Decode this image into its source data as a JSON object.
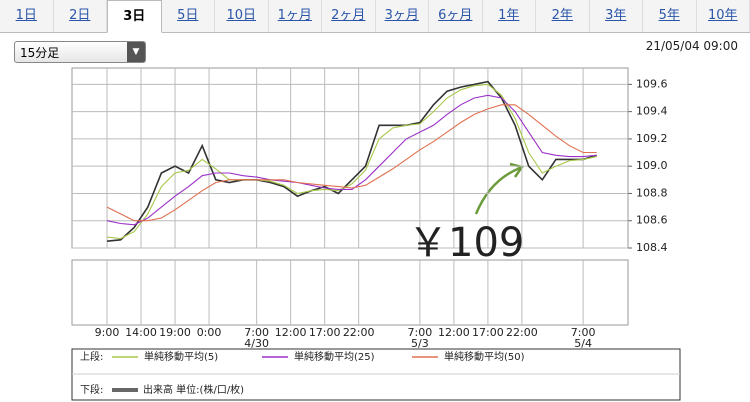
{
  "tabs": [
    "1日",
    "2日",
    "3日",
    "5日",
    "10日",
    "1ヶ月",
    "2ヶ月",
    "3ヶ月",
    "6ヶ月",
    "1年",
    "2年",
    "3年",
    "5年",
    "10年"
  ],
  "active_tab": 2,
  "interval_select": "15分足",
  "timestamp": "21/05/04 09:00",
  "chart_data": {
    "type": "line",
    "annotation": {
      "text": "￥109",
      "color": "#6a9a3a"
    },
    "x": [
      0,
      2,
      4,
      6,
      8,
      10,
      12,
      14,
      16,
      18,
      20,
      22,
      24,
      26,
      28,
      30,
      32,
      34,
      36,
      38,
      40,
      42,
      44,
      46,
      48,
      50,
      52,
      54,
      56,
      58,
      60,
      62,
      64,
      66,
      68,
      70,
      72
    ],
    "xlim": [
      -5.15,
      76.6
    ],
    "xticks": [
      {
        "value": 0,
        "label": "9:00"
      },
      {
        "value": 5,
        "label": "14:00"
      },
      {
        "value": 10,
        "label": "19:00"
      },
      {
        "value": 15,
        "label": "0:00"
      },
      {
        "value": 22,
        "label": "7:00",
        "date": "4/30"
      },
      {
        "value": 27,
        "label": "12:00"
      },
      {
        "value": 32,
        "label": "17:00"
      },
      {
        "value": 37,
        "label": "22:00"
      },
      {
        "value": 46,
        "label": "7:00",
        "date": "5/3"
      },
      {
        "value": 51,
        "label": "12:00"
      },
      {
        "value": 56,
        "label": "17:00"
      },
      {
        "value": 61,
        "label": "22:00"
      },
      {
        "value": 70,
        "label": "7:00",
        "date": "5/4"
      }
    ],
    "ylim": [
      108.4,
      109.72
    ],
    "yticks": [
      {
        "value": 108.4,
        "label": "108.4"
      },
      {
        "value": 108.6,
        "label": "108.6"
      },
      {
        "value": 108.8,
        "label": "108.8"
      },
      {
        "value": 109.0,
        "label": "109.0"
      },
      {
        "value": 109.2,
        "label": "109.2"
      },
      {
        "value": 109.4,
        "label": "109.4"
      },
      {
        "value": 109.6,
        "label": "109.6"
      }
    ],
    "grid": true,
    "series": [
      {
        "color": "#333333",
        "values": [
          108.45,
          108.46,
          108.55,
          108.7,
          108.95,
          109.0,
          108.95,
          109.15,
          108.9,
          108.88,
          108.9,
          108.9,
          108.88,
          108.85,
          108.78,
          108.82,
          108.85,
          108.8,
          108.9,
          109.0,
          109.3,
          109.3,
          109.3,
          109.32,
          109.45,
          109.55,
          109.58,
          109.6,
          109.62,
          109.5,
          109.3,
          109.0,
          108.9,
          109.05,
          109.05,
          109.05,
          109.08
        ]
      },
      {
        "name": "単純移動平均(5)",
        "color": "#a8c84a",
        "values": [
          108.48,
          108.47,
          108.52,
          108.65,
          108.85,
          108.95,
          108.97,
          109.05,
          108.98,
          108.9,
          108.9,
          108.9,
          108.89,
          108.86,
          108.8,
          108.82,
          108.83,
          108.82,
          108.87,
          108.97,
          109.2,
          109.28,
          109.3,
          109.31,
          109.4,
          109.5,
          109.56,
          109.59,
          109.6,
          109.52,
          109.35,
          109.1,
          108.95,
          109.0,
          109.04,
          109.05,
          109.07
        ]
      },
      {
        "name": "単純移動平均(25)",
        "color": "#9b30c8",
        "values": [
          108.6,
          108.58,
          108.57,
          108.62,
          108.7,
          108.78,
          108.85,
          108.93,
          108.95,
          108.95,
          108.93,
          108.92,
          108.9,
          108.89,
          108.88,
          108.86,
          108.84,
          108.83,
          108.83,
          108.9,
          109.0,
          109.1,
          109.2,
          109.25,
          109.3,
          109.38,
          109.45,
          109.5,
          109.52,
          109.5,
          109.4,
          109.25,
          109.1,
          109.08,
          109.07,
          109.07,
          109.08
        ]
      },
      {
        "name": "単純移動平均(50)",
        "color": "#e07050",
        "values": [
          108.7,
          108.65,
          108.6,
          108.6,
          108.62,
          108.68,
          108.75,
          108.82,
          108.88,
          108.9,
          108.9,
          108.9,
          108.9,
          108.9,
          108.88,
          108.87,
          108.86,
          108.85,
          108.84,
          108.86,
          108.92,
          108.98,
          109.05,
          109.12,
          109.18,
          109.25,
          109.32,
          109.38,
          109.42,
          109.45,
          109.45,
          109.38,
          109.3,
          109.22,
          109.15,
          109.1,
          109.1
        ]
      }
    ],
    "legend": {
      "upper_label": "上段:",
      "lower_label": "下段:",
      "volume_label": "出来高 単位:(株/口/枚)",
      "volume_color": "#666666"
    }
  }
}
